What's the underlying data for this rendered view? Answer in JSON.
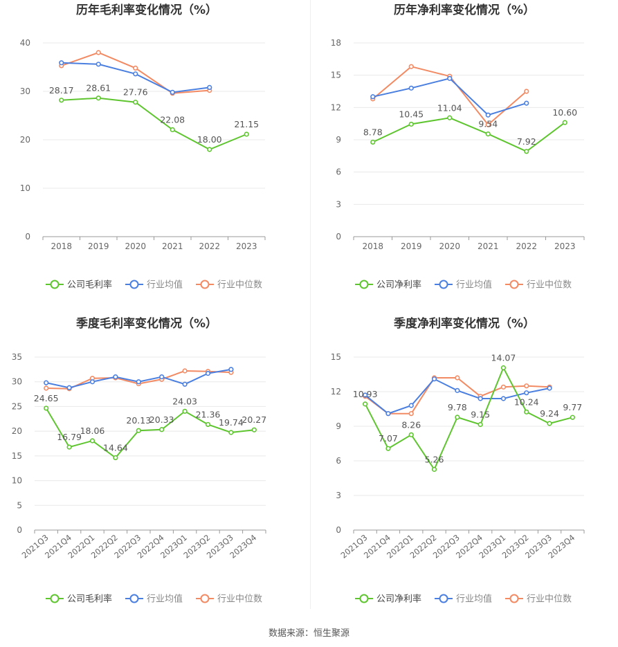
{
  "colors": {
    "company": "#5ec52f",
    "industry_avg": "#4a7fe0",
    "industry_median": "#f28a63",
    "grid": "#e8e8e8",
    "axis": "#999999",
    "text": "#666666",
    "title": "#333333"
  },
  "legend_icon": "circle-line-icon",
  "source_text": "数据来源：恒生聚源",
  "chart_data": [
    {
      "id": "annual-gross",
      "type": "line",
      "title": "历年毛利率变化情况（%）",
      "x": [
        "2018",
        "2019",
        "2020",
        "2021",
        "2022",
        "2023"
      ],
      "ylim": [
        0,
        40
      ],
      "yticks": [
        0,
        10,
        20,
        30,
        40
      ],
      "grid": true,
      "legend_position": "bottom",
      "series": [
        {
          "name": "公司毛利率",
          "color_key": "company",
          "values": [
            28.17,
            28.61,
            27.76,
            22.08,
            18.0,
            21.15
          ],
          "labels": [
            "28.17",
            "28.61",
            "27.76",
            "22.08",
            "18.00",
            "21.15"
          ]
        },
        {
          "name": "行业均值",
          "color_key": "industry_avg",
          "values": [
            35.9,
            35.6,
            33.6,
            29.8,
            30.8,
            null
          ]
        },
        {
          "name": "行业中位数",
          "color_key": "industry_median",
          "values": [
            35.3,
            38.0,
            34.8,
            29.6,
            30.2,
            null
          ]
        }
      ]
    },
    {
      "id": "annual-net",
      "type": "line",
      "title": "历年净利率变化情况（%）",
      "x": [
        "2018",
        "2019",
        "2020",
        "2021",
        "2022",
        "2023"
      ],
      "ylim": [
        0,
        18
      ],
      "yticks": [
        0,
        3,
        6,
        9,
        12,
        15,
        18
      ],
      "grid": true,
      "legend_position": "bottom",
      "series": [
        {
          "name": "公司净利率",
          "color_key": "company",
          "values": [
            8.78,
            10.45,
            11.04,
            9.54,
            7.92,
            10.6
          ],
          "labels": [
            "8.78",
            "10.45",
            "11.04",
            "9.54",
            "7.92",
            "10.60"
          ]
        },
        {
          "name": "行业均值",
          "color_key": "industry_avg",
          "values": [
            13.0,
            13.8,
            14.7,
            11.3,
            12.4,
            null
          ]
        },
        {
          "name": "行业中位数",
          "color_key": "industry_median",
          "values": [
            12.8,
            15.8,
            14.9,
            10.4,
            13.5,
            null
          ]
        }
      ]
    },
    {
      "id": "quarterly-gross",
      "type": "line",
      "title": "季度毛利率变化情况（%）",
      "x": [
        "2021Q3",
        "2021Q4",
        "2022Q1",
        "2022Q2",
        "2022Q3",
        "2022Q4",
        "2023Q1",
        "2023Q2",
        "2023Q3",
        "2023Q4"
      ],
      "ylim": [
        0,
        35
      ],
      "yticks": [
        0,
        5,
        10,
        15,
        20,
        25,
        30,
        35
      ],
      "grid": true,
      "legend_position": "bottom",
      "series": [
        {
          "name": "公司毛利率",
          "color_key": "company",
          "values": [
            24.65,
            16.79,
            18.06,
            14.64,
            20.13,
            20.33,
            24.03,
            21.36,
            19.74,
            20.27
          ],
          "labels": [
            "24.65",
            "16.79",
            "18.06",
            "14.64",
            "20.13",
            "20.33",
            "24.03",
            "21.36",
            "19.74",
            "20.27"
          ]
        },
        {
          "name": "行业均值",
          "color_key": "industry_avg",
          "values": [
            29.8,
            28.8,
            30.0,
            31.0,
            30.0,
            31.0,
            29.5,
            31.7,
            32.5,
            null
          ]
        },
        {
          "name": "行业中位数",
          "color_key": "industry_median",
          "values": [
            28.7,
            28.6,
            30.7,
            30.8,
            29.6,
            30.5,
            32.2,
            32.1,
            31.9,
            null
          ]
        }
      ]
    },
    {
      "id": "quarterly-net",
      "type": "line",
      "title": "季度净利率变化情况（%）",
      "x": [
        "2021Q3",
        "2021Q4",
        "2022Q1",
        "2022Q2",
        "2022Q3",
        "2022Q4",
        "2023Q1",
        "2023Q2",
        "2023Q3",
        "2023Q4"
      ],
      "ylim": [
        0,
        15
      ],
      "yticks": [
        0,
        3,
        6,
        9,
        12,
        15
      ],
      "grid": true,
      "legend_position": "bottom",
      "series": [
        {
          "name": "公司净利率",
          "color_key": "company",
          "values": [
            10.93,
            7.07,
            8.26,
            5.26,
            9.78,
            9.15,
            14.07,
            10.24,
            9.24,
            9.77
          ],
          "labels": [
            "10.93",
            "7.07",
            "8.26",
            "5.26",
            "9.78",
            "9.15",
            "14.07",
            "10.24",
            "9.24",
            "9.77"
          ]
        },
        {
          "name": "行业均值",
          "color_key": "industry_avg",
          "values": [
            11.7,
            10.1,
            10.8,
            13.1,
            12.1,
            11.4,
            11.4,
            11.9,
            12.3,
            null
          ]
        },
        {
          "name": "行业中位数",
          "color_key": "industry_median",
          "values": [
            11.6,
            10.1,
            10.1,
            13.2,
            13.2,
            11.6,
            12.4,
            12.5,
            12.4,
            null
          ]
        }
      ]
    }
  ]
}
